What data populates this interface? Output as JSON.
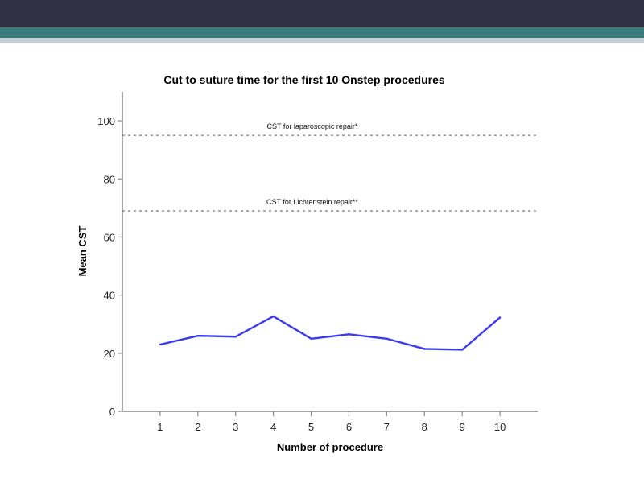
{
  "header": {
    "dark_color": "#323247",
    "teal_color": "#3b7a7a",
    "light_color": "#c6d0d4"
  },
  "chart_data": {
    "type": "line",
    "title": "Cut to suture time for the first 10 Onstep procedures",
    "xlabel": "Number of procedure",
    "ylabel": "Mean CST",
    "x": [
      1,
      2,
      3,
      4,
      5,
      6,
      7,
      8,
      9,
      10
    ],
    "series": [
      {
        "values": [
          23.0,
          26.0,
          25.7,
          32.7,
          25.0,
          26.5,
          25.0,
          21.5,
          21.2,
          32.3
        ],
        "color": "#3a3af0"
      }
    ],
    "xlim": [
      0,
      11
    ],
    "ylim": [
      0,
      110
    ],
    "yticks": [
      0,
      20,
      40,
      60,
      80,
      100
    ],
    "xticks": [
      1,
      2,
      3,
      4,
      5,
      6,
      7,
      8,
      9,
      10
    ],
    "reference_lines": [
      {
        "label": "CST for laparoscopic repair*",
        "value": 95,
        "style": "dotted"
      },
      {
        "label": "CST for Lichtenstein repair**",
        "value": 69,
        "style": "dotted"
      }
    ],
    "grid": false,
    "legend": "none"
  }
}
